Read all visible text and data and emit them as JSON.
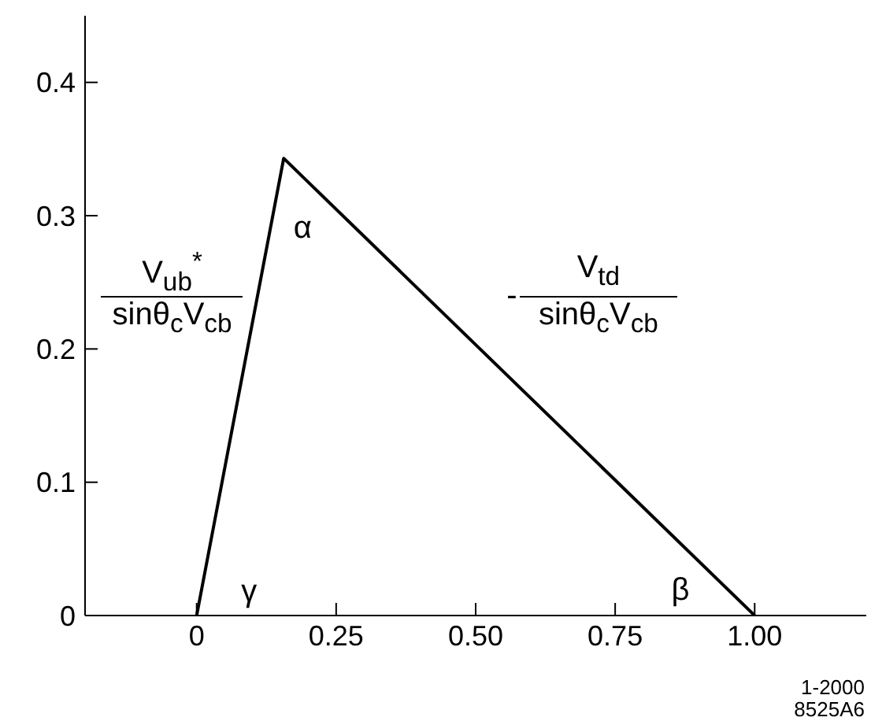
{
  "chart_data": {
    "type": "line",
    "x": [
      0,
      0.156,
      1
    ],
    "series": [
      {
        "color": "#000000",
        "values": [
          0,
          0.343,
          0
        ]
      }
    ],
    "xlim": [
      -0.2,
      1.2
    ],
    "ylim": [
      0,
      0.45
    ],
    "xticks": [
      0,
      {
        "value": 0.25,
        "label": "0.25"
      },
      {
        "value": 0.5,
        "label": "0.50"
      },
      {
        "value": 0.75,
        "label": "0.75"
      },
      {
        "value": 1,
        "label": "1.00"
      }
    ],
    "yticks": [
      0,
      0.1,
      0.2,
      0.3,
      0.4
    ],
    "marker": "none",
    "grid": false,
    "legend": false,
    "annotations": [
      "V$_{ub}$$^{*}$",
      "sinθ$_{c}$V$_{cb}$",
      "-",
      "V$_{td}$",
      "sinθ$_{c}$V$_{cb}$",
      "α",
      "γ",
      "β",
      "1-2000",
      "8525A6"
    ]
  }
}
